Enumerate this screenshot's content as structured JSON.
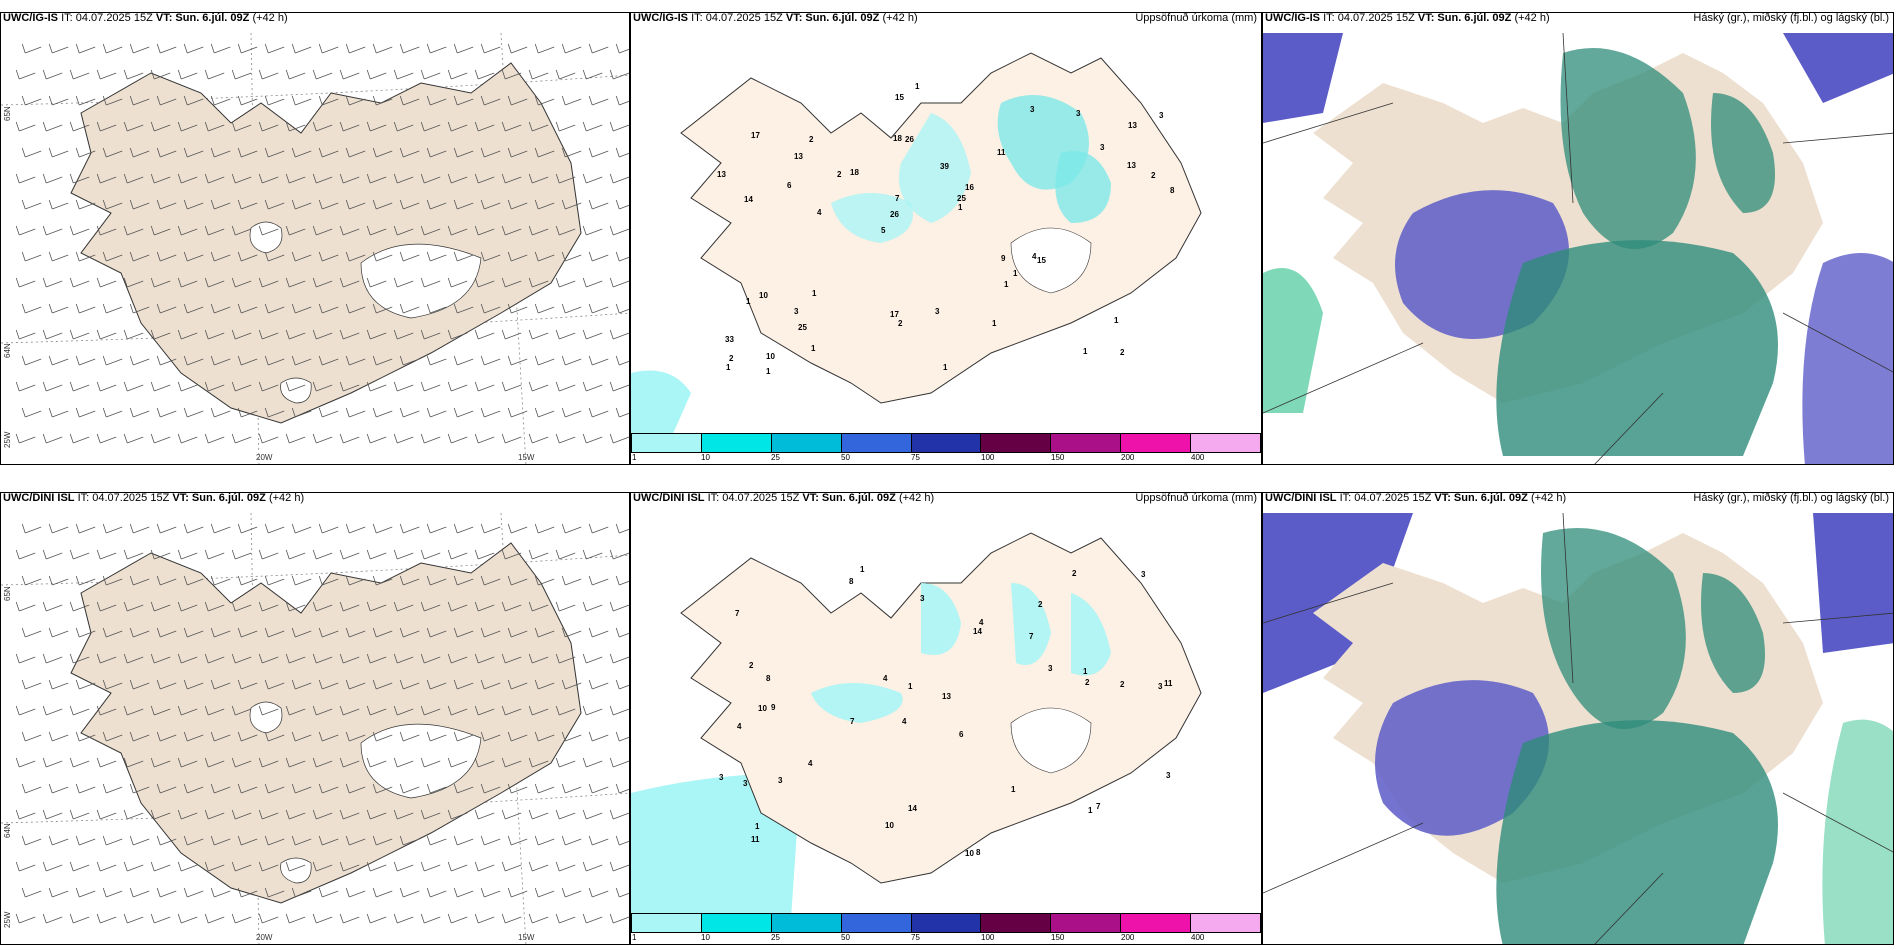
{
  "rows": [
    {
      "model": "UWC/IG-IS",
      "it": "IT: 04.07.2025 15Z",
      "vt": "VT: Sun. 6.júl. 09Z",
      "lead": "(+42 h)",
      "precip_numbers": [
        "2",
        "14",
        "13",
        "5",
        "11",
        "10",
        "18",
        "39",
        "10",
        "18",
        "33",
        "25",
        "26",
        "16",
        "15",
        "17",
        "15",
        "8",
        "9",
        "13",
        "26",
        "17",
        "7",
        "2",
        "3",
        "1",
        "1",
        "1",
        "4",
        "1",
        "2",
        "6",
        "1",
        "1",
        "2",
        "25",
        "2",
        "2",
        "1",
        "1",
        "3",
        "3",
        "1",
        "1",
        "3",
        "1",
        "1",
        "3",
        "3",
        "1",
        "4",
        "13",
        "13"
      ]
    },
    {
      "model": "UWC/DINI ISL",
      "it": "IT: 04.07.2025 15Z",
      "vt": "VT: Sun. 6.júl. 09Z",
      "lead": "(+42 h)",
      "precip_numbers": [
        "1",
        "2",
        "3",
        "4",
        "6",
        "9",
        "7",
        "7",
        "4",
        "14",
        "13",
        "11",
        "8",
        "7",
        "10",
        "8",
        "14",
        "2",
        "3",
        "4",
        "8",
        "10",
        "11",
        "2",
        "3",
        "2",
        "1",
        "2",
        "7",
        "3",
        "1",
        "4",
        "3",
        "4",
        "1",
        "3",
        "1",
        "10",
        "3",
        "3",
        "1"
      ]
    }
  ],
  "precip_title": "Uppsöfnuð úrkoma (mm)",
  "cloud_title": "Háský (gr.), miðský (fj.bl.) og lágský (bl.)",
  "wind_axes": {
    "lon_labels": [
      "20W",
      "15W"
    ],
    "lat_labels": [
      "65N",
      "64N",
      "25W"
    ]
  },
  "precip_colorbar": {
    "ticks": [
      "1",
      "10",
      "25",
      "50",
      "75",
      "100",
      "150",
      "200",
      "400"
    ],
    "colors": [
      "#aaf5f5",
      "#00e5e5",
      "#00bcd8",
      "#3366dd",
      "#2233aa",
      "#660044",
      "#aa1188",
      "#ee11aa",
      "#f5aaf0"
    ]
  },
  "colors": {
    "land": "#ede0d0",
    "land_precip": "#fdf0e4",
    "high_cloud": "#5c5cc8",
    "mid_cloud": "#2e8c7a",
    "low_cloud": "#7fd8b8"
  }
}
